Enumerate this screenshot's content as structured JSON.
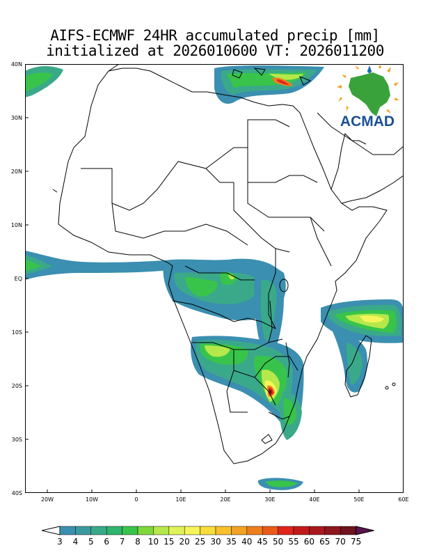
{
  "title_line1": "AIFS-ECMWF 24HR accumulated precip [mm]",
  "title_line2": "initialized at 2026010600 VT: 2026011200",
  "logo_text": "ACMAD",
  "lat_labels": [
    "40N",
    "30N",
    "20N",
    "10N",
    "EQ",
    "10S",
    "20S",
    "30S",
    "40S"
  ],
  "lon_labels": [
    "20W",
    "10W",
    "0",
    "10E",
    "20E",
    "30E",
    "40E",
    "50E",
    "60E"
  ],
  "colorbar": {
    "levels": [
      "3",
      "4",
      "5",
      "6",
      "7",
      "8",
      "10",
      "15",
      "20",
      "25",
      "30",
      "35",
      "40",
      "45",
      "50",
      "55",
      "60",
      "65",
      "70",
      "75"
    ],
    "colors": [
      "#3b8fb0",
      "#3c9a9e",
      "#3aa98a",
      "#2fb56f",
      "#38c44a",
      "#7fd83a",
      "#b5e84a",
      "#dff25a",
      "#f5f55a",
      "#f7dc3c",
      "#f7c02c",
      "#f2a224",
      "#ee7e1d",
      "#ea5a18",
      "#e0241a",
      "#c21a1a",
      "#a8181c",
      "#8e161e",
      "#6e1220",
      "#5a1450"
    ]
  },
  "precip_colors": {
    "light": "#3b8fb0",
    "teal": "#3aa98a",
    "green": "#38c44a",
    "lime": "#b5e84a",
    "yellow": "#f5f55a",
    "orange": "#ee7e1d",
    "red": "#e0241a",
    "darkred": "#6e1220"
  }
}
